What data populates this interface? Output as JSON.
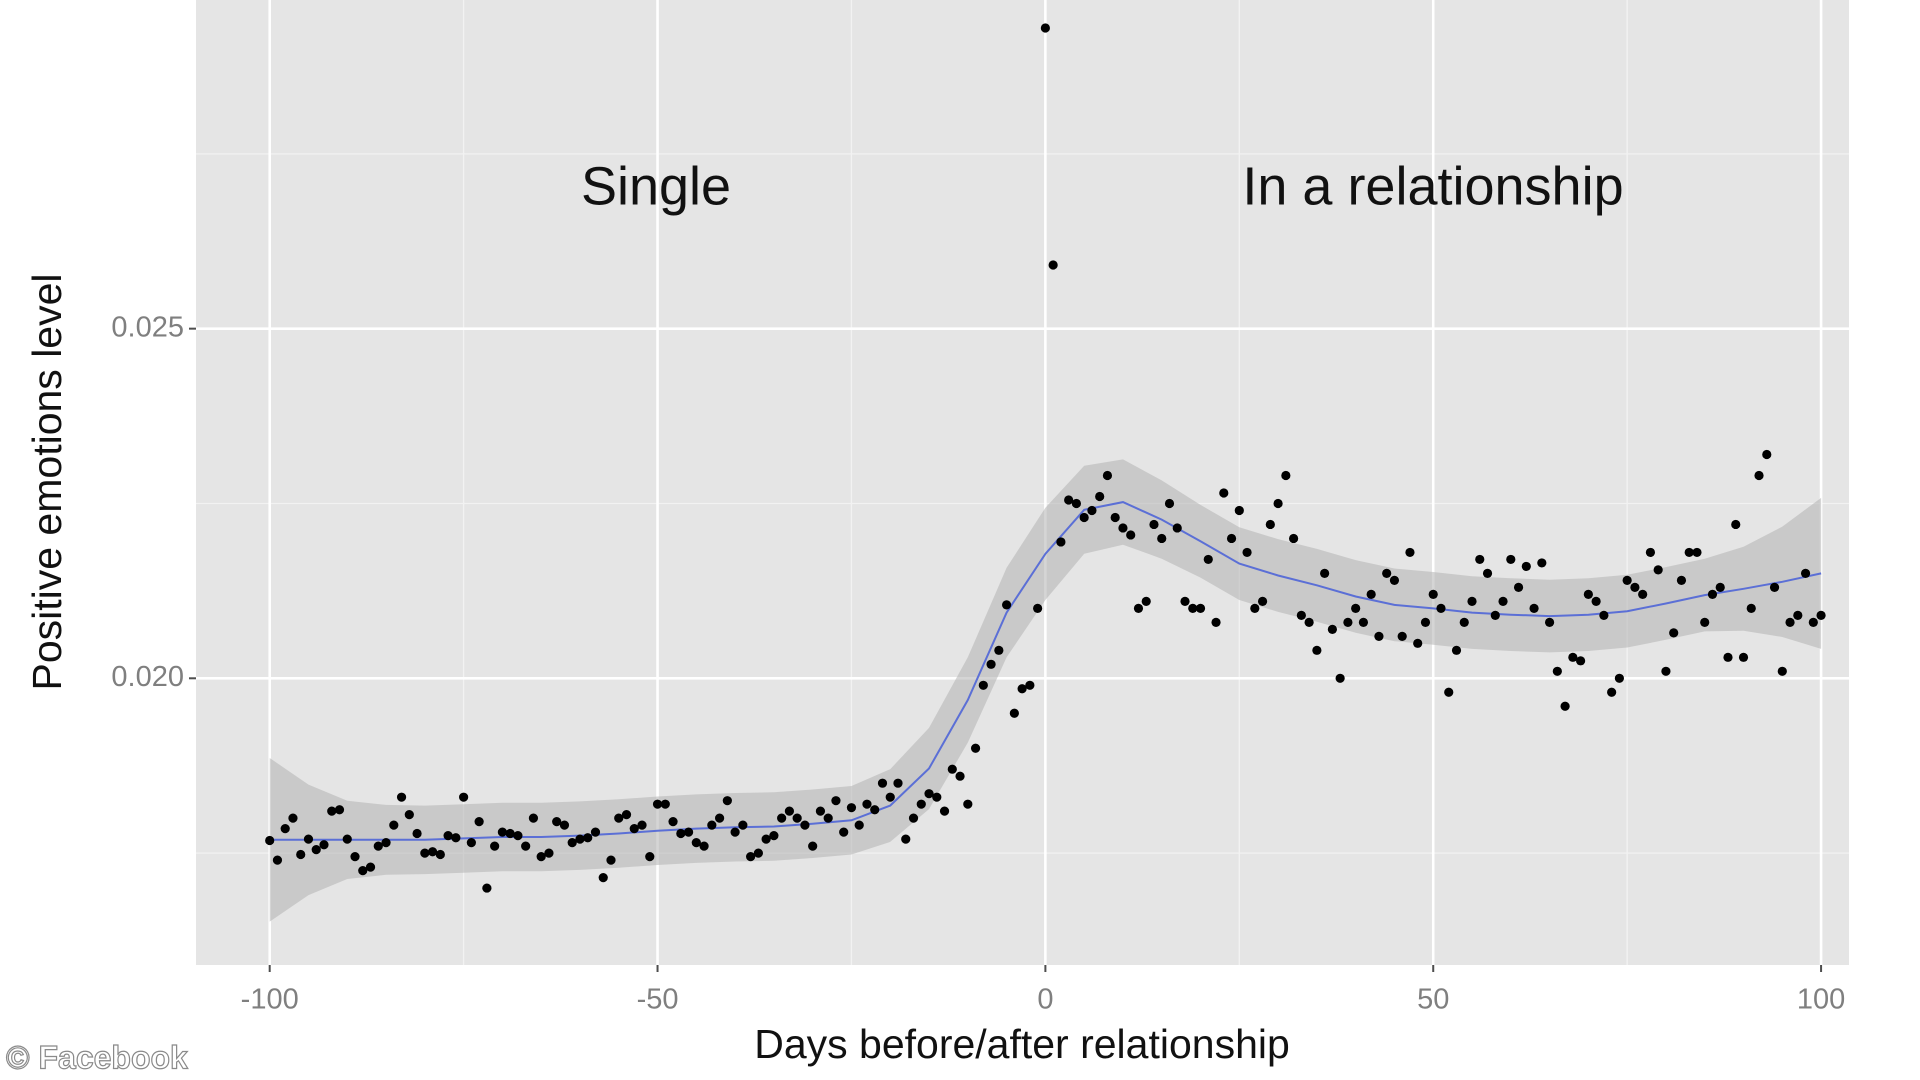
{
  "chart_data": {
    "type": "scatter",
    "xlabel": "Days before/after relationship",
    "ylabel": "Positive emotions level",
    "annotations": [
      "Single",
      "In a relationship"
    ],
    "source": "© Facebook",
    "xlim": [
      -109.5,
      103.6
    ],
    "ylim": [
      0.0159,
      0.0297
    ],
    "xticks": [
      -100,
      -50,
      0,
      50,
      100
    ],
    "yticks": [
      {
        "value": 0.02,
        "label": "0.020"
      },
      0.025
    ],
    "x_minor_grid": [
      -75,
      -25,
      25,
      75
    ],
    "y_minor_grid": [
      0.0175,
      0.0225,
      0.0275
    ],
    "grid": true,
    "panel_color": "#e5e5e5",
    "points": {
      "color": "#000000",
      "x": [
        -100,
        -99,
        -98,
        -97,
        -96,
        -95,
        -94,
        -93,
        -92,
        -91,
        -90,
        -89,
        -88,
        -87,
        -86,
        -85,
        -84,
        -83,
        -82,
        -81,
        -80,
        -79,
        -78,
        -77,
        -76,
        -75,
        -74,
        -73,
        -72,
        -71,
        -70,
        -69,
        -68,
        -67,
        -66,
        -65,
        -64,
        -63,
        -62,
        -61,
        -60,
        -59,
        -58,
        -57,
        -56,
        -55,
        -54,
        -53,
        -52,
        -51,
        -50,
        -49,
        -48,
        -47,
        -46,
        -45,
        -44,
        -43,
        -42,
        -41,
        -40,
        -39,
        -38,
        -37,
        -36,
        -35,
        -34,
        -33,
        -32,
        -31,
        -30,
        -29,
        -28,
        -27,
        -26,
        -25,
        -24,
        -23,
        -22,
        -21,
        -20,
        -19,
        -18,
        -17,
        -16,
        -15,
        -14,
        -13,
        -12,
        -11,
        -10,
        -9,
        -8,
        -7,
        -6,
        -5,
        -4,
        -3,
        -2,
        -1,
        0,
        1,
        2,
        3,
        4,
        5,
        6,
        7,
        8,
        9,
        10,
        11,
        12,
        13,
        14,
        15,
        16,
        17,
        18,
        19,
        20,
        21,
        22,
        23,
        24,
        25,
        26,
        27,
        28,
        29,
        30,
        31,
        32,
        33,
        34,
        35,
        36,
        37,
        38,
        39,
        40,
        41,
        42,
        43,
        44,
        45,
        46,
        47,
        48,
        49,
        50,
        51,
        52,
        53,
        54,
        55,
        56,
        57,
        58,
        59,
        60,
        61,
        62,
        63,
        64,
        65,
        66,
        67,
        68,
        69,
        70,
        71,
        72,
        73,
        74,
        75,
        76,
        77,
        78,
        79,
        80,
        81,
        82,
        83,
        84,
        85,
        86,
        87,
        88,
        89,
        90,
        91,
        92,
        93,
        94,
        95,
        96,
        97,
        98,
        99,
        100
      ],
      "values": [
        0.01768,
        0.0174,
        0.01785,
        0.018,
        0.01748,
        0.0177,
        0.01755,
        0.01762,
        0.0181,
        0.01812,
        0.0177,
        0.01745,
        0.01725,
        0.0173,
        0.0176,
        0.01765,
        0.0179,
        0.0183,
        0.01805,
        0.01778,
        0.0175,
        0.01752,
        0.01748,
        0.01775,
        0.01772,
        0.0183,
        0.01765,
        0.01795,
        0.017,
        0.0176,
        0.0178,
        0.01778,
        0.01775,
        0.0176,
        0.018,
        0.01745,
        0.0175,
        0.01795,
        0.0179,
        0.01765,
        0.0177,
        0.01772,
        0.0178,
        0.01715,
        0.0174,
        0.018,
        0.01805,
        0.01785,
        0.0179,
        0.01745,
        0.0182,
        0.0182,
        0.01795,
        0.01778,
        0.0178,
        0.01765,
        0.0176,
        0.0179,
        0.018,
        0.01825,
        0.0178,
        0.0179,
        0.01745,
        0.0175,
        0.0177,
        0.01775,
        0.018,
        0.0181,
        0.018,
        0.0179,
        0.0176,
        0.0181,
        0.018,
        0.01825,
        0.0178,
        0.01815,
        0.0179,
        0.0182,
        0.01812,
        0.0185,
        0.0183,
        0.0185,
        0.0177,
        0.018,
        0.0182,
        0.01835,
        0.0183,
        0.0181,
        0.0187,
        0.0186,
        0.0182,
        0.019,
        0.0199,
        0.0202,
        0.0204,
        0.02105,
        0.0195,
        0.01985,
        0.0199,
        0.021,
        0.0293,
        0.02591,
        0.02195,
        0.02255,
        0.0225,
        0.0223,
        0.0224,
        0.0226,
        0.0229,
        0.0223,
        0.02215,
        0.02205,
        0.021,
        0.0211,
        0.0222,
        0.022,
        0.0225,
        0.02215,
        0.0211,
        0.021,
        0.021,
        0.0217,
        0.0208,
        0.02265,
        0.022,
        0.0224,
        0.0218,
        0.021,
        0.0211,
        0.0222,
        0.0225,
        0.0229,
        0.022,
        0.0209,
        0.0208,
        0.0204,
        0.0215,
        0.0207,
        0.02,
        0.0208,
        0.021,
        0.0208,
        0.0212,
        0.0206,
        0.0215,
        0.0214,
        0.0206,
        0.0218,
        0.0205,
        0.0208,
        0.0212,
        0.021,
        0.0198,
        0.0204,
        0.0208,
        0.0211,
        0.0217,
        0.0215,
        0.0209,
        0.0211,
        0.0217,
        0.0213,
        0.0216,
        0.021,
        0.02165,
        0.0208,
        0.0201,
        0.0196,
        0.0203,
        0.02025,
        0.0212,
        0.0211,
        0.0209,
        0.0198,
        0.02,
        0.0214,
        0.0213,
        0.0212,
        0.0218,
        0.02155,
        0.0201,
        0.02065,
        0.0214,
        0.0218,
        0.0218,
        0.0208,
        0.0212,
        0.0213,
        0.0203,
        0.0222,
        0.0203,
        0.021,
        0.0229,
        0.0232,
        0.0213,
        0.0201,
        0.0208,
        0.0209,
        0.0215,
        0.0208,
        0.0209
      ]
    },
    "smooth": {
      "color": "#5b6fd6",
      "band_color": "#b3b3b3",
      "x": [
        -100,
        -95,
        -90,
        -85,
        -80,
        -75,
        -70,
        -65,
        -60,
        -55,
        -50,
        -45,
        -40,
        -35,
        -30,
        -25,
        -20,
        -15,
        -10,
        -5,
        0,
        5,
        10,
        15,
        20,
        25,
        30,
        35,
        40,
        45,
        50,
        55,
        60,
        65,
        70,
        75,
        80,
        85,
        90,
        95,
        100
      ],
      "values": [
        0.01769,
        0.01769,
        0.01769,
        0.01769,
        0.01769,
        0.01771,
        0.01773,
        0.01773,
        0.01775,
        0.01778,
        0.01782,
        0.01785,
        0.01787,
        0.01788,
        0.01792,
        0.01797,
        0.01818,
        0.01871,
        0.01969,
        0.02094,
        0.02178,
        0.02241,
        0.02252,
        0.02227,
        0.02196,
        0.02164,
        0.02147,
        0.02133,
        0.02117,
        0.02105,
        0.021,
        0.02094,
        0.02091,
        0.02089,
        0.02091,
        0.02096,
        0.02107,
        0.02119,
        0.02128,
        0.02138,
        0.0215
      ],
      "errors": [
        0.00117,
        0.00079,
        0.00056,
        0.0005,
        0.00049,
        0.00049,
        0.00049,
        0.00049,
        0.00049,
        0.00049,
        0.00049,
        0.00049,
        0.00049,
        0.00049,
        0.00049,
        0.00049,
        0.00052,
        0.00058,
        0.00061,
        0.00064,
        0.00066,
        0.00063,
        0.00061,
        0.00056,
        0.00052,
        0.00052,
        0.00052,
        0.00052,
        0.00052,
        0.00052,
        0.00052,
        0.00052,
        0.00052,
        0.00052,
        0.00052,
        0.00052,
        0.00052,
        0.00052,
        0.0006,
        0.00079,
        0.00108
      ]
    }
  }
}
